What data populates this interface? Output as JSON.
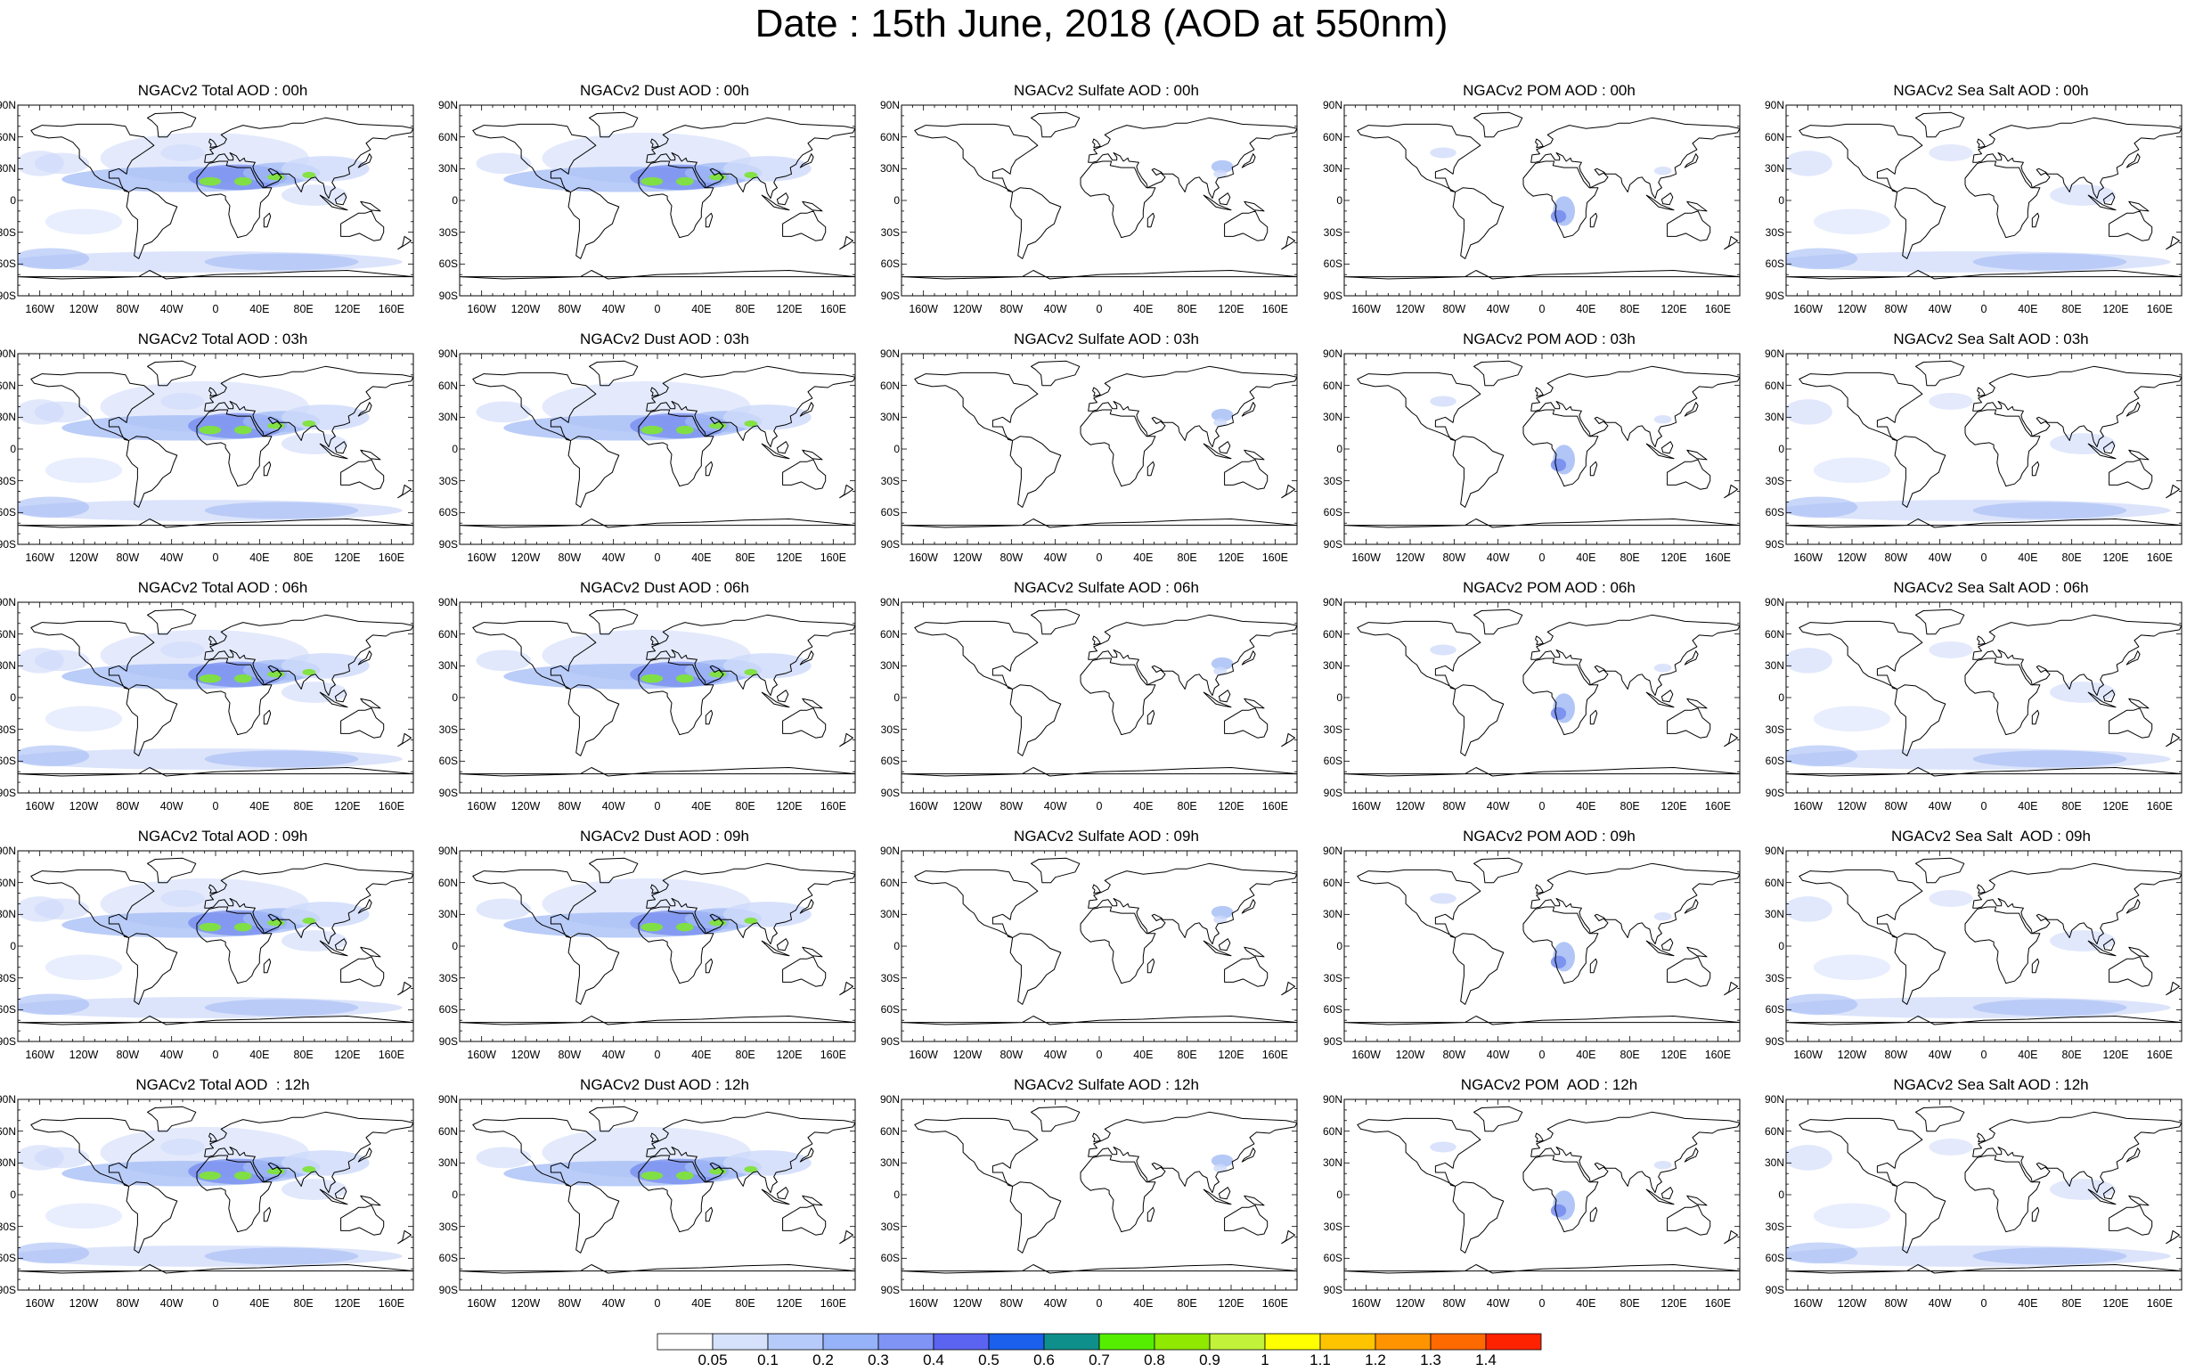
{
  "title": "Date : 15th June, 2018 (AOD at 550nm)",
  "map_axes": {
    "lat_ticks": [
      "90N",
      "60N",
      "30N",
      "0",
      "30S",
      "60S",
      "90S"
    ],
    "lon_ticks": [
      "160W",
      "120W",
      "80W",
      "40W",
      "0",
      "40E",
      "80E",
      "120E",
      "160E"
    ],
    "lon_tick_values": [
      -160,
      -120,
      -80,
      -40,
      0,
      40,
      80,
      120,
      160
    ]
  },
  "panel_titles": [
    [
      "NGACv2 Total AOD : 00h",
      "NGACv2 Dust AOD : 00h",
      "NGACv2 Sulfate AOD : 00h",
      "NGACv2 POM AOD : 00h",
      "NGACv2 Sea Salt AOD : 00h"
    ],
    [
      "NGACv2 Total AOD : 03h",
      "NGACv2 Dust AOD : 03h",
      "NGACv2 Sulfate AOD : 03h",
      "NGACv2 POM AOD : 03h",
      "NGACv2 Sea Salt AOD : 03h"
    ],
    [
      "NGACv2 Total AOD : 06h",
      "NGACv2 Dust AOD : 06h",
      "NGACv2 Sulfate AOD : 06h",
      "NGACv2 POM AOD : 06h",
      "NGACv2 Sea Salt AOD : 06h"
    ],
    [
      "NGACv2 Total AOD : 09h",
      "NGACv2 Dust AOD : 09h",
      "NGACv2 Sulfate AOD : 09h",
      "NGACv2 POM AOD : 09h",
      "NGACv2 Sea Salt  AOD : 09h"
    ],
    [
      "NGACv2 Total AOD  : 12h",
      "NGACv2 Dust AOD : 12h",
      "NGACv2 Sulfate AOD : 12h",
      "NGACv2 POM  AOD : 12h",
      "NGACv2 Sea Salt AOD : 12h"
    ]
  ],
  "colorbar": {
    "labels": [
      "0.05",
      "0.1",
      "0.2",
      "0.3",
      "0.4",
      "0.5",
      "0.6",
      "0.7",
      "0.8",
      "0.9",
      "1",
      "1.1",
      "1.2",
      "1.3",
      "1.4"
    ],
    "colors": [
      "#ffffff",
      "#d6e2fc",
      "#b7cbfa",
      "#96b2f8",
      "#8094f6",
      "#5b63f1",
      "#1a60ec",
      "#0f8f8c",
      "#55ee00",
      "#8fe900",
      "#c2f23a",
      "#ffff00",
      "#ffc400",
      "#ff9400",
      "#ff6a00",
      "#ff2200"
    ]
  },
  "colors": {
    "light_aod": "#cdd9fa",
    "medium_aod": "#a3bbf5",
    "high_aod": "#6f86ee",
    "dust_hotspot": "#7fe33a",
    "coastline": "#000000"
  }
}
